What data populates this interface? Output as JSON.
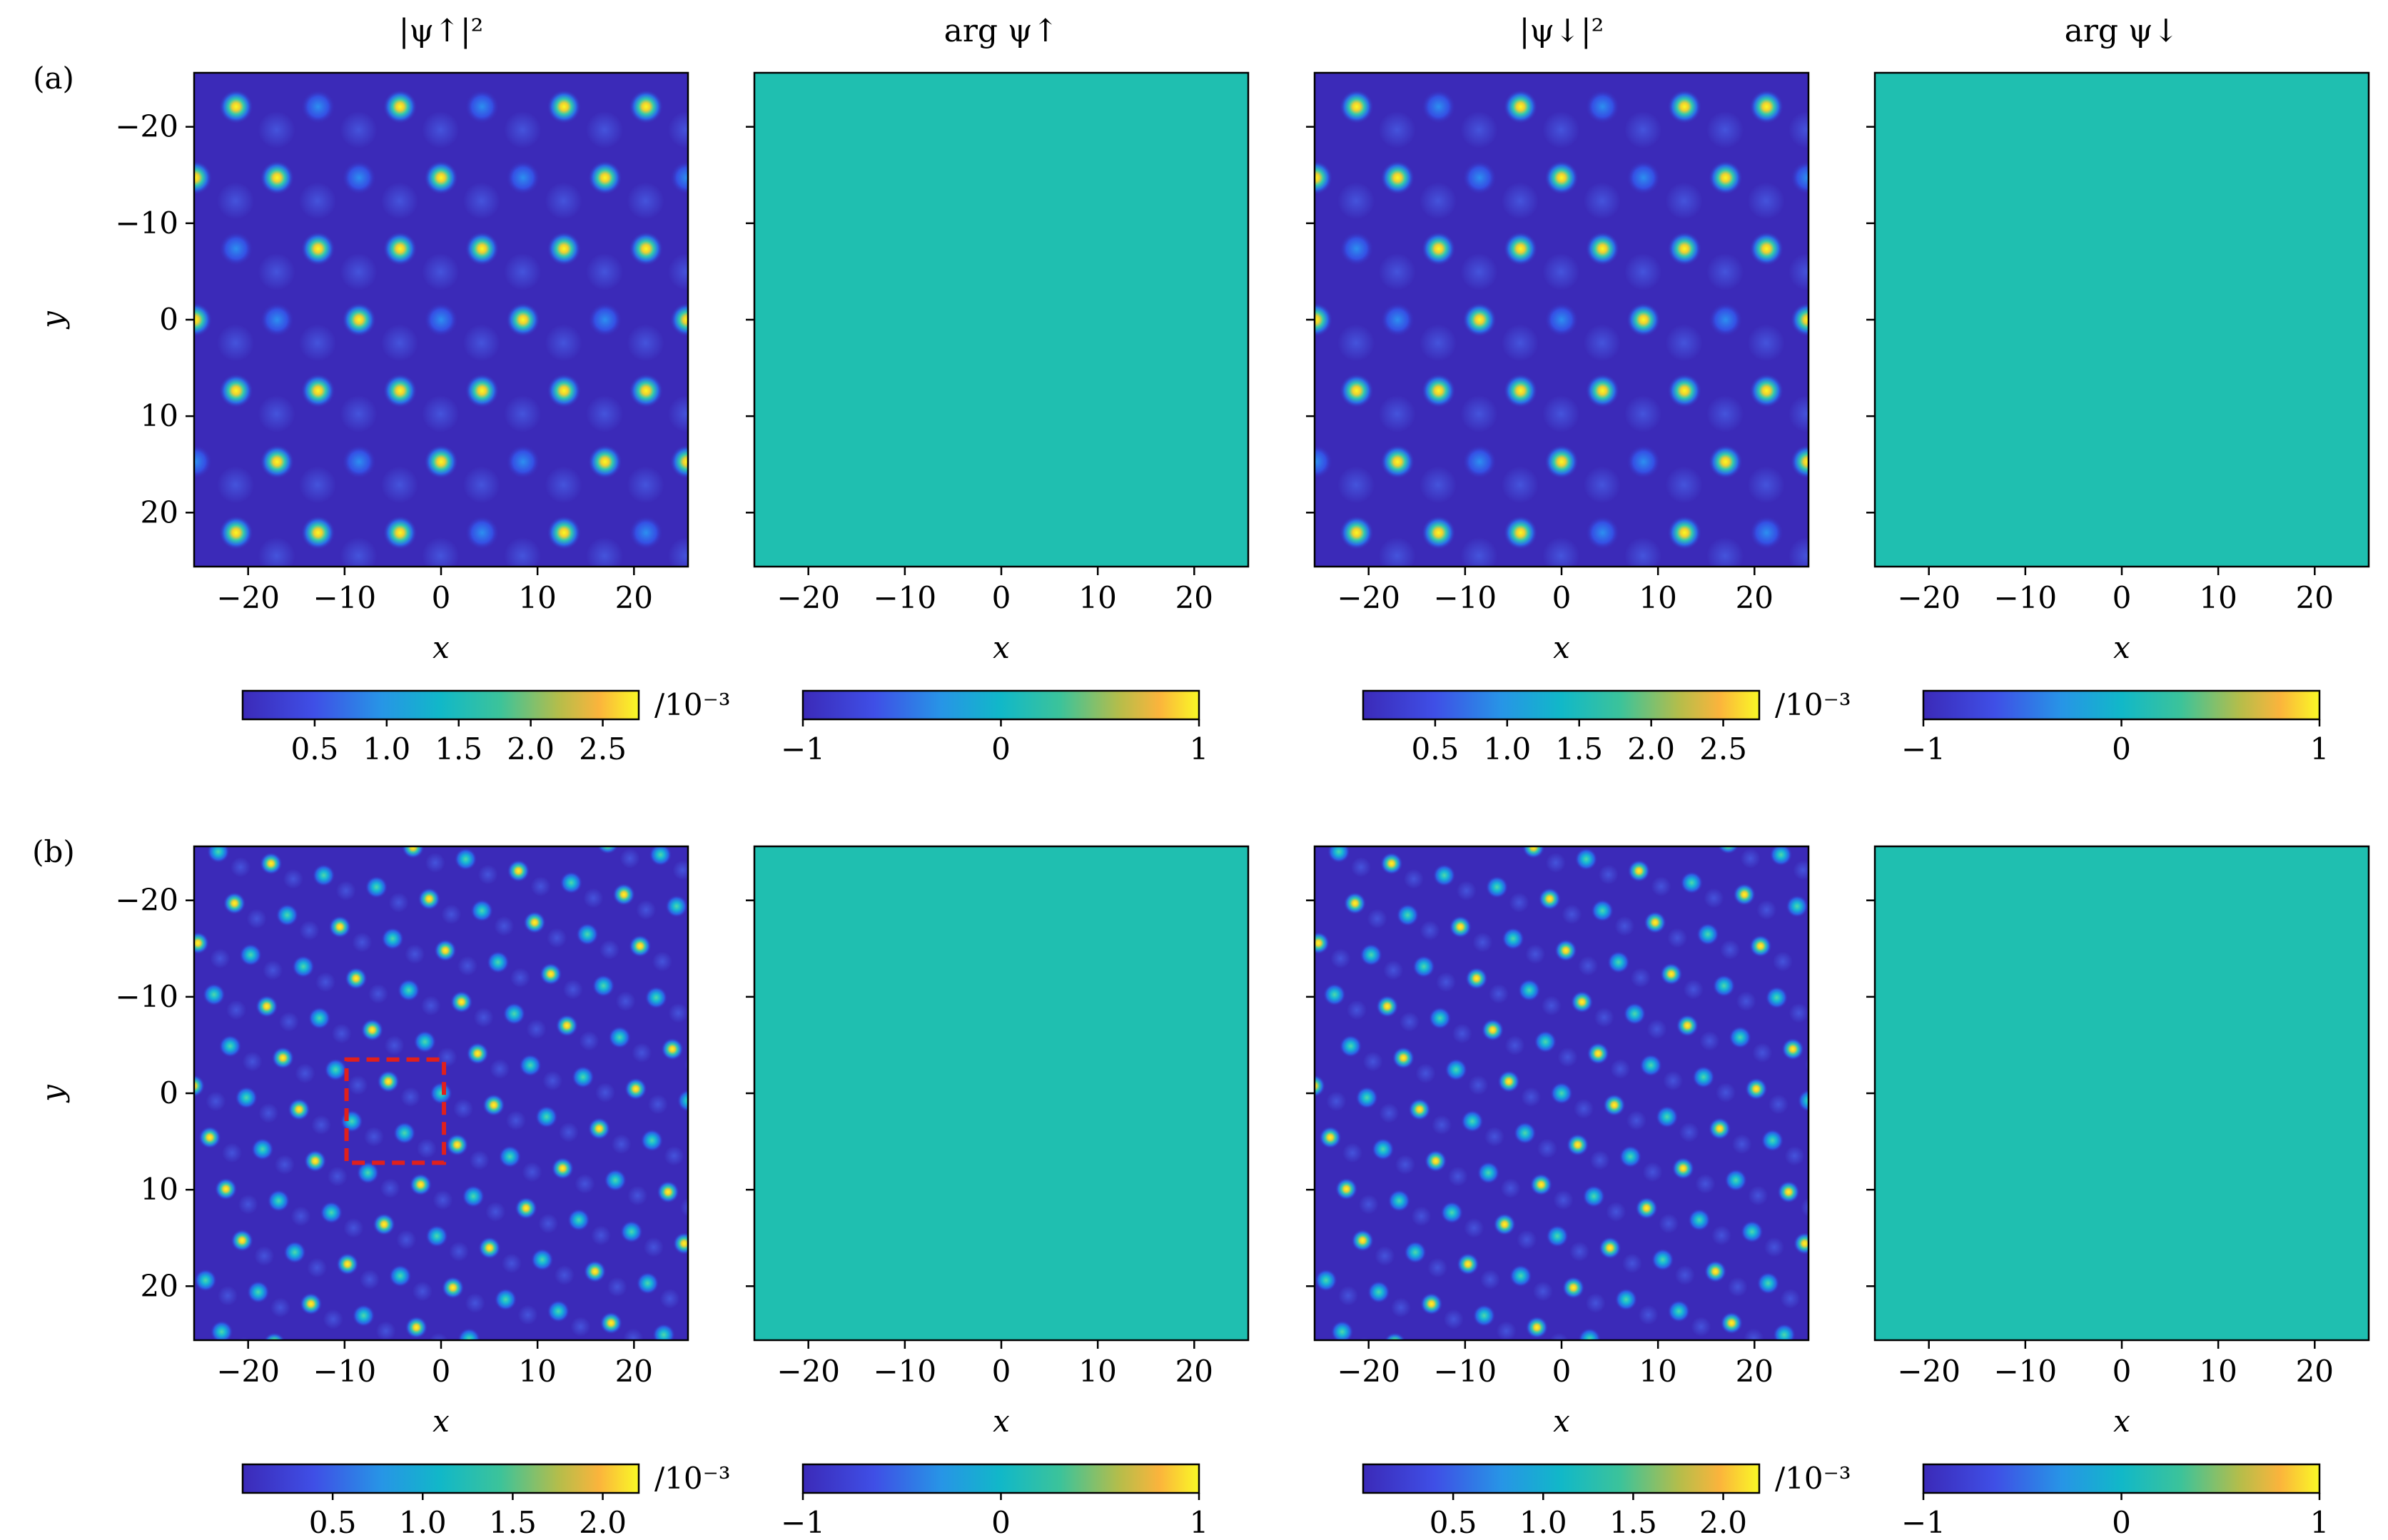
{
  "figure": {
    "rows": [
      {
        "label": "(a)",
        "density_cbar_ticks": [
          "0.5",
          "1.0",
          "1.5",
          "2.0",
          "2.5"
        ],
        "density_vmax": 2.75,
        "lattice": "sparse"
      },
      {
        "label": "(b)",
        "density_cbar_ticks": [
          "0.5",
          "1.0",
          "1.5",
          "2.0"
        ],
        "density_vmax": 2.2,
        "lattice": "dense"
      }
    ],
    "column_titles": [
      "|ψ↑|²",
      "arg ψ↑",
      "|ψ↓|²",
      "arg ψ↓"
    ],
    "xlabel": "x",
    "ylabel": "y",
    "cbar_unit": "/10⁻³",
    "phase_cbar_ticks": [
      "−1",
      "0",
      "1"
    ],
    "phase_fill_color": "#1fbfb0",
    "highlight_color": "#e0201c",
    "colormap": "viridis"
  },
  "chart_data": [
    {
      "type": "heatmap",
      "panel": "(a) |ψ↑|²",
      "title": "|ψ↑|²",
      "xlabel": "x",
      "ylabel": "y",
      "xlim": [
        -25.6,
        25.6
      ],
      "ylim": [
        25.6,
        -25.6
      ],
      "xticks": [
        "−20",
        "−10",
        "0",
        "10",
        "20"
      ],
      "yticks": [
        "−20",
        "−10",
        "0",
        "10",
        "20"
      ],
      "colorbar": {
        "ticks": [
          0.5,
          1.0,
          1.5,
          2.0,
          2.5
        ],
        "unit": "/10⁻³",
        "cmap": "viridis"
      },
      "description_values": "quasi-periodic (dodecagonal) lattice of density peaks, max ≈ 2.75e-3"
    },
    {
      "type": "heatmap",
      "panel": "(a) arg ψ↑",
      "title": "arg ψ↑",
      "xlabel": "x",
      "xlim": [
        -25.6,
        25.6
      ],
      "xticks": [
        "−20",
        "−10",
        "0",
        "10",
        "20"
      ],
      "colorbar": {
        "ticks": [
          -1,
          0,
          1
        ],
        "cmap": "viridis"
      },
      "uniform_value": 0
    },
    {
      "type": "heatmap",
      "panel": "(a) |ψ↓|²",
      "title": "|ψ↓|²",
      "xlabel": "x",
      "xlim": [
        -25.6,
        25.6
      ],
      "xticks": [
        "−20",
        "−10",
        "0",
        "10",
        "20"
      ],
      "colorbar": {
        "ticks": [
          0.5,
          1.0,
          1.5,
          2.0,
          2.5
        ],
        "unit": "/10⁻³",
        "cmap": "viridis"
      }
    },
    {
      "type": "heatmap",
      "panel": "(a) arg ψ↓",
      "title": "arg ψ↓",
      "xlabel": "x",
      "xlim": [
        -25.6,
        25.6
      ],
      "xticks": [
        "−20",
        "−10",
        "0",
        "10",
        "20"
      ],
      "colorbar": {
        "ticks": [
          -1,
          0,
          1
        ],
        "cmap": "viridis"
      },
      "uniform_value": 0
    },
    {
      "type": "heatmap",
      "panel": "(b) |ψ↑|²",
      "xlabel": "x",
      "ylabel": "y",
      "xlim": [
        -25.6,
        25.6
      ],
      "ylim": [
        25.6,
        -25.6
      ],
      "xticks": [
        "−20",
        "−10",
        "0",
        "10",
        "20"
      ],
      "yticks": [
        "−20",
        "−10",
        "0",
        "10",
        "20"
      ],
      "colorbar": {
        "ticks": [
          0.5,
          1.0,
          1.5,
          2.0
        ],
        "unit": "/10⁻³",
        "cmap": "viridis"
      },
      "highlight_box": {
        "x": [
          -9.8,
          0.3
        ],
        "y": [
          -3.5,
          7.2
        ],
        "style": "red dashed"
      }
    },
    {
      "type": "heatmap",
      "panel": "(b) arg ψ↑",
      "xlabel": "x",
      "xlim": [
        -25.6,
        25.6
      ],
      "xticks": [
        "−20",
        "−10",
        "0",
        "10",
        "20"
      ],
      "colorbar": {
        "ticks": [
          -1,
          0,
          1
        ],
        "cmap": "viridis"
      },
      "uniform_value": 0
    },
    {
      "type": "heatmap",
      "panel": "(b) |ψ↓|²",
      "xlabel": "x",
      "xlim": [
        -25.6,
        25.6
      ],
      "xticks": [
        "−20",
        "−10",
        "0",
        "10",
        "20"
      ],
      "colorbar": {
        "ticks": [
          0.5,
          1.0,
          1.5,
          2.0
        ],
        "unit": "/10⁻³",
        "cmap": "viridis"
      }
    },
    {
      "type": "heatmap",
      "panel": "(b) arg ψ↓",
      "xlabel": "x",
      "xlim": [
        -25.6,
        25.6
      ],
      "xticks": [
        "−20",
        "−10",
        "0",
        "10",
        "20"
      ],
      "colorbar": {
        "ticks": [
          -1,
          0,
          1
        ],
        "cmap": "viridis"
      },
      "uniform_value": 0
    }
  ]
}
